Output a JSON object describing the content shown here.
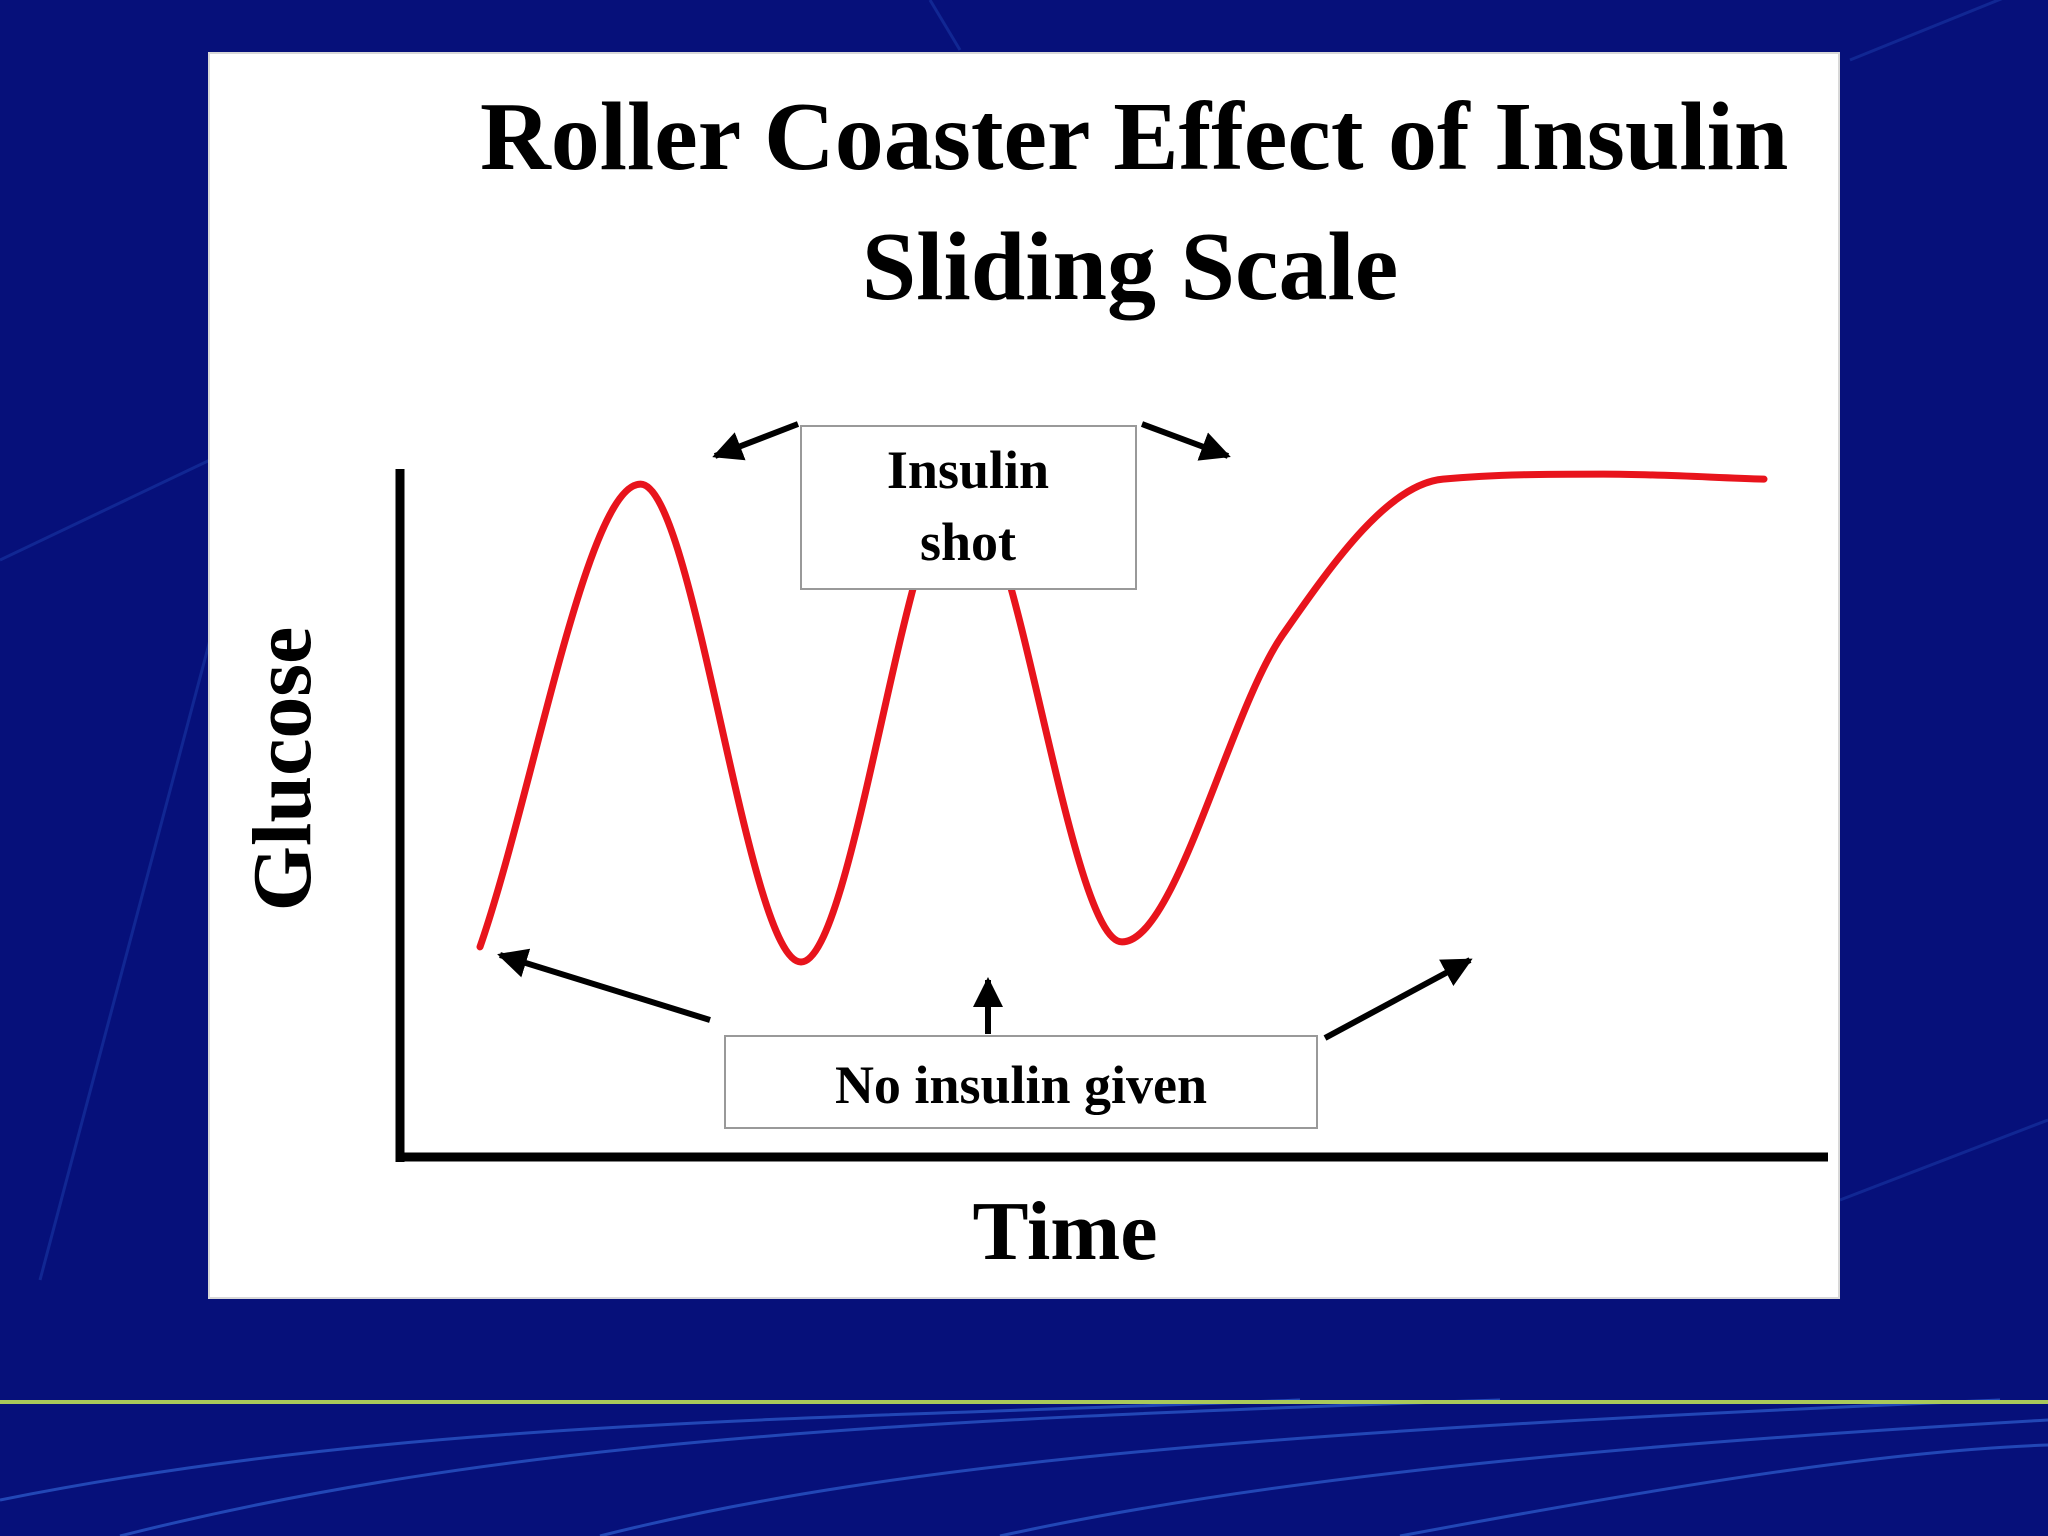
{
  "slide": {
    "background_color": "#06107a",
    "accent_line_color": "#a9c95a"
  },
  "chart_data": {
    "type": "line",
    "title": [
      "Roller Coaster Effect of Insulin",
      "Sliding Scale"
    ],
    "xlabel": "Time",
    "ylabel": "Glucose",
    "axis_ticks": false,
    "grid": false,
    "legend": "none",
    "series": [
      {
        "color": "#e8141c",
        "x": [
          0.0,
          0.25,
          0.5,
          0.75,
          1.0,
          1.25,
          1.5,
          1.75,
          2.0
        ],
        "y": [
          0.03,
          0.95,
          0.0,
          0.95,
          0.04,
          0.65,
          0.96,
          0.97,
          0.96
        ]
      }
    ],
    "annotations": [
      {
        "id": "insulin-shot",
        "text": [
          "Insulin",
          "shot"
        ],
        "points_to": "peaks"
      },
      {
        "id": "no-insulin",
        "text": "No insulin given",
        "points_to": "troughs"
      }
    ]
  }
}
